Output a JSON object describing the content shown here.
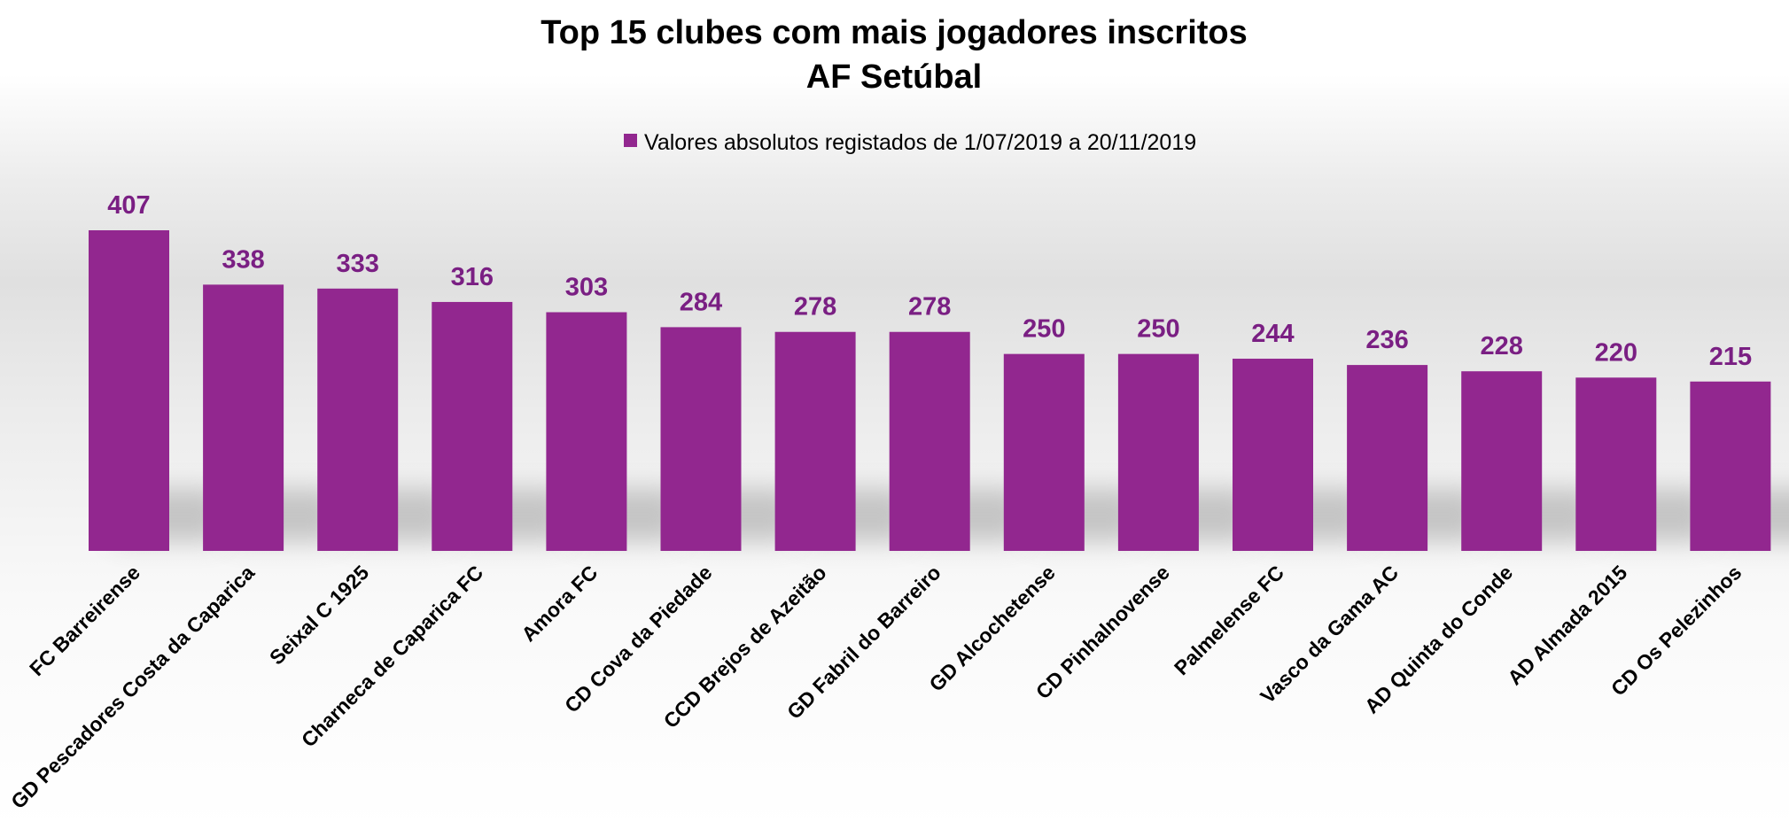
{
  "chart_data": {
    "type": "bar",
    "title": "Top 15 clubes com mais jogadores inscritos",
    "subtitle": "AF Setúbal",
    "legend": {
      "position": "top",
      "entries": [
        "Valores absolutos registados de 1/07/2019 a 20/11/2019"
      ]
    },
    "categories": [
      "FC Barreirense",
      "GD Pescadores Costa da Caparica",
      "Seixal C 1925",
      "Charneca de Caparica FC",
      "Amora FC",
      "CD Cova da Piedade",
      "CCD Brejos de Azeitão",
      "GD Fabril do Barreiro",
      "GD Alcochetense",
      "CD Pinhalnovense",
      "Palmelense FC",
      "Vasco da Gama AC",
      "AD Quinta do Conde",
      "AD Almada 2015",
      "CD Os Pelezinhos"
    ],
    "series": [
      {
        "name": "Valores absolutos registados de 1/07/2019 a 20/11/2019",
        "values": [
          407,
          338,
          333,
          316,
          303,
          284,
          278,
          278,
          250,
          250,
          244,
          236,
          228,
          220,
          215
        ],
        "color": "#92278f"
      }
    ],
    "ylim": [
      0,
      407
    ],
    "grid": false,
    "data_labels": true,
    "label_color": "#7a1f83"
  }
}
